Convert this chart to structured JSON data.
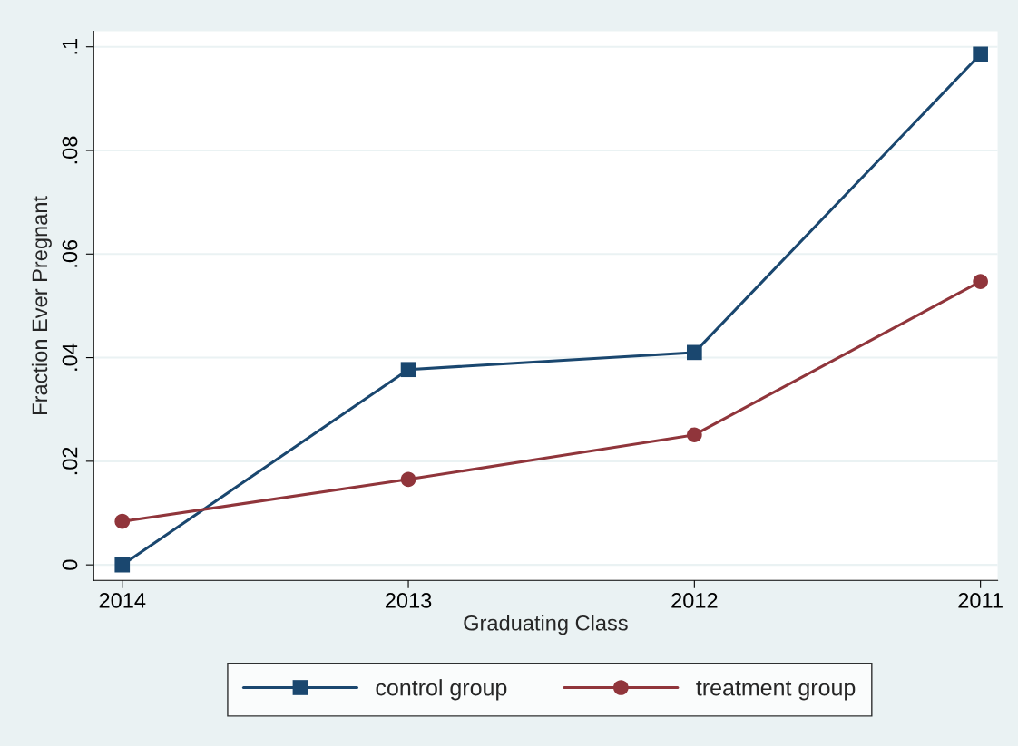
{
  "chart_data": {
    "type": "line",
    "xlabel": "Graduating Class",
    "ylabel": "Fraction Ever Pregnant",
    "x": [
      2014,
      2013,
      2012,
      2011
    ],
    "series": [
      {
        "name": "control group",
        "color": "#1a476f",
        "marker": "square",
        "values": [
          0,
          0.0377,
          0.041,
          0.0986
        ]
      },
      {
        "name": "treatment group",
        "color": "#90353b",
        "marker": "circle",
        "values": [
          0.0084,
          0.0165,
          0.0251,
          0.0547
        ]
      }
    ],
    "xlim": [
      2014.1,
      2010.94
    ],
    "xticks": [
      2014,
      2013,
      2012,
      2011
    ],
    "ylim": [
      -0.003,
      0.103
    ],
    "yticks": [
      {
        "value": 0,
        "label": "0"
      },
      {
        "value": 0.02,
        "label": ".02"
      },
      {
        "value": 0.04,
        "label": ".04"
      },
      {
        "value": 0.06,
        "label": ".06"
      },
      {
        "value": 0.08,
        "label": ".08"
      },
      {
        "value": 0.1,
        "label": ".1"
      }
    ],
    "grid": "y",
    "legend": "bottom",
    "line_style": "solid"
  }
}
